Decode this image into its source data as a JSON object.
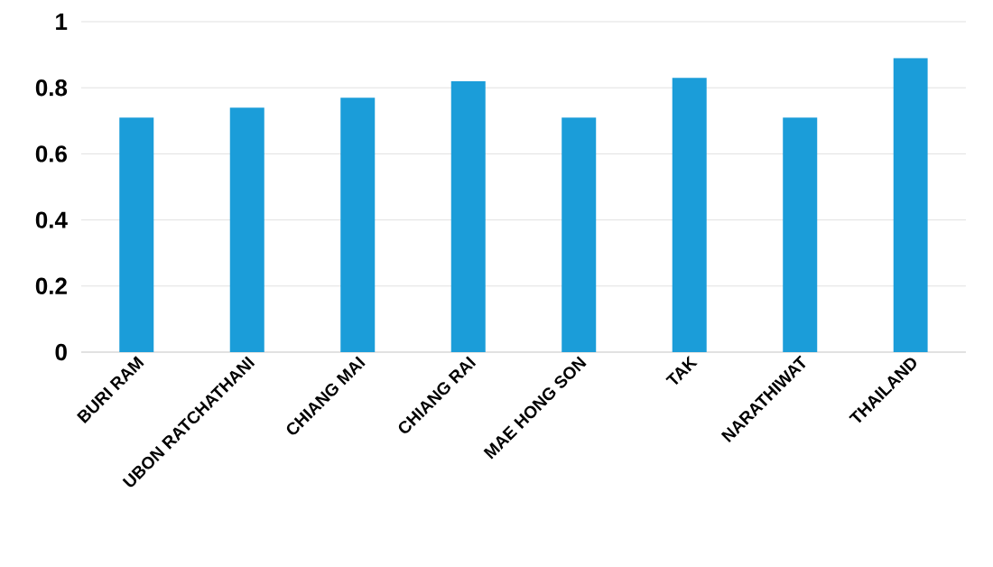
{
  "chart_data": {
    "type": "bar",
    "categories": [
      "BURI RAM",
      "UBON RATCHATHANI",
      "CHIANG MAI",
      "CHIANG RAI",
      "MAE HONG SON",
      "TAK",
      "NARATHIWAT",
      "THAILAND"
    ],
    "values": [
      0.71,
      0.74,
      0.77,
      0.82,
      0.71,
      0.83,
      0.71,
      0.89
    ],
    "color": "#1b9dd9",
    "ylim": [
      0,
      1
    ],
    "yticks": [
      0,
      0.2,
      0.4,
      0.6,
      0.8,
      1
    ],
    "grid": "y"
  }
}
